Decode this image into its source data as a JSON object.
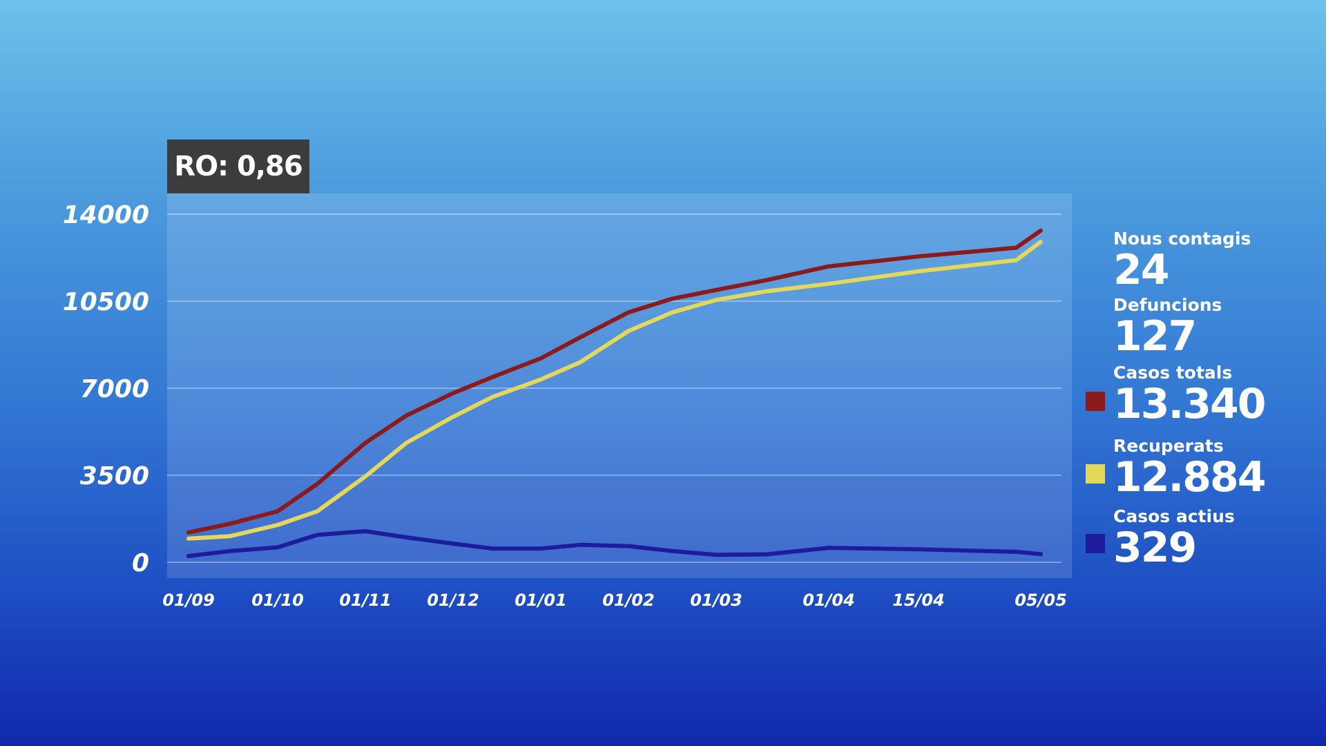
{
  "ro_badge": "RO: 0,86",
  "stats": [
    {
      "label": "Nous contagis",
      "value": "24"
    },
    {
      "label": "Defuncions",
      "value": "127"
    },
    {
      "label": "Casos totals",
      "value": "13.340",
      "color": "#8b1a1a"
    },
    {
      "label": "Recuperats",
      "value": "12.884",
      "color": "#e3d85a"
    },
    {
      "label": "Casos actius",
      "value": "329",
      "color": "#1c1c9c"
    }
  ],
  "chart_data": {
    "type": "line",
    "title": "",
    "xlabel": "",
    "ylabel": "",
    "ylim": [
      0,
      14000
    ],
    "yticks": [
      0,
      3500,
      7000,
      10500,
      14000
    ],
    "ytick_labels": [
      "0",
      "3500",
      "7000",
      "10500",
      "14000"
    ],
    "xticks": [
      "01/09",
      "01/10",
      "01/11",
      "01/12",
      "01/01",
      "01/02",
      "01/03",
      "01/04",
      "15/04",
      "05/05"
    ],
    "grid": true,
    "legend": "right",
    "series": [
      {
        "name": "Casos totals",
        "color": "#8b1a1a",
        "points": [
          [
            "01/09",
            1200
          ],
          [
            "15/09",
            1550
          ],
          [
            "01/10",
            2050
          ],
          [
            "15/10",
            3150
          ],
          [
            "01/11",
            4800
          ],
          [
            "15/11",
            5900
          ],
          [
            "01/12",
            6800
          ],
          [
            "15/12",
            7450
          ],
          [
            "01/01",
            8200
          ],
          [
            "15/01",
            9050
          ],
          [
            "01/02",
            10050
          ],
          [
            "15/02",
            10600
          ],
          [
            "01/03",
            10950
          ],
          [
            "15/03",
            11350
          ],
          [
            "01/04",
            11900
          ],
          [
            "15/04",
            12300
          ],
          [
            "01/05",
            12650
          ],
          [
            "05/05",
            13340
          ]
        ]
      },
      {
        "name": "Recuperats",
        "color": "#e3d85a",
        "points": [
          [
            "01/09",
            950
          ],
          [
            "15/09",
            1050
          ],
          [
            "01/10",
            1500
          ],
          [
            "15/10",
            2050
          ],
          [
            "01/11",
            3450
          ],
          [
            "15/11",
            4800
          ],
          [
            "01/12",
            5850
          ],
          [
            "15/12",
            6650
          ],
          [
            "01/01",
            7350
          ],
          [
            "15/01",
            8050
          ],
          [
            "01/02",
            9300
          ],
          [
            "15/02",
            10050
          ],
          [
            "01/03",
            10550
          ],
          [
            "15/03",
            10900
          ],
          [
            "01/04",
            11200
          ],
          [
            "15/04",
            11700
          ],
          [
            "01/05",
            12150
          ],
          [
            "05/05",
            12884
          ]
        ]
      },
      {
        "name": "Casos actius",
        "color": "#1c1c9c",
        "points": [
          [
            "01/09",
            250
          ],
          [
            "15/09",
            450
          ],
          [
            "01/10",
            600
          ],
          [
            "15/10",
            1100
          ],
          [
            "01/11",
            1250
          ],
          [
            "15/11",
            1000
          ],
          [
            "01/12",
            750
          ],
          [
            "15/12",
            550
          ],
          [
            "01/01",
            550
          ],
          [
            "15/01",
            700
          ],
          [
            "01/02",
            650
          ],
          [
            "15/02",
            450
          ],
          [
            "01/03",
            300
          ],
          [
            "15/03",
            320
          ],
          [
            "01/04",
            580
          ],
          [
            "15/04",
            520
          ],
          [
            "01/05",
            420
          ],
          [
            "05/05",
            329
          ]
        ]
      }
    ]
  }
}
